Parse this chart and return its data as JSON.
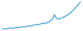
{
  "values": [
    1.0,
    1.3,
    1.1,
    1.5,
    1.7,
    1.4,
    1.8,
    2.0,
    1.9,
    2.3,
    2.6,
    2.4,
    2.8,
    3.2,
    3.0,
    3.5,
    3.8,
    4.2,
    4.0,
    4.5,
    5.0,
    4.7,
    5.2,
    5.8,
    6.5,
    7.8,
    10.8,
    8.5,
    7.8,
    8.2,
    8.8,
    9.5,
    10.3,
    11.2,
    12.0,
    13.5,
    14.8,
    16.5,
    18.0,
    19.5
  ],
  "line_color": "#4da6d8",
  "background_color": "#ffffff",
  "linewidth": 1.1
}
